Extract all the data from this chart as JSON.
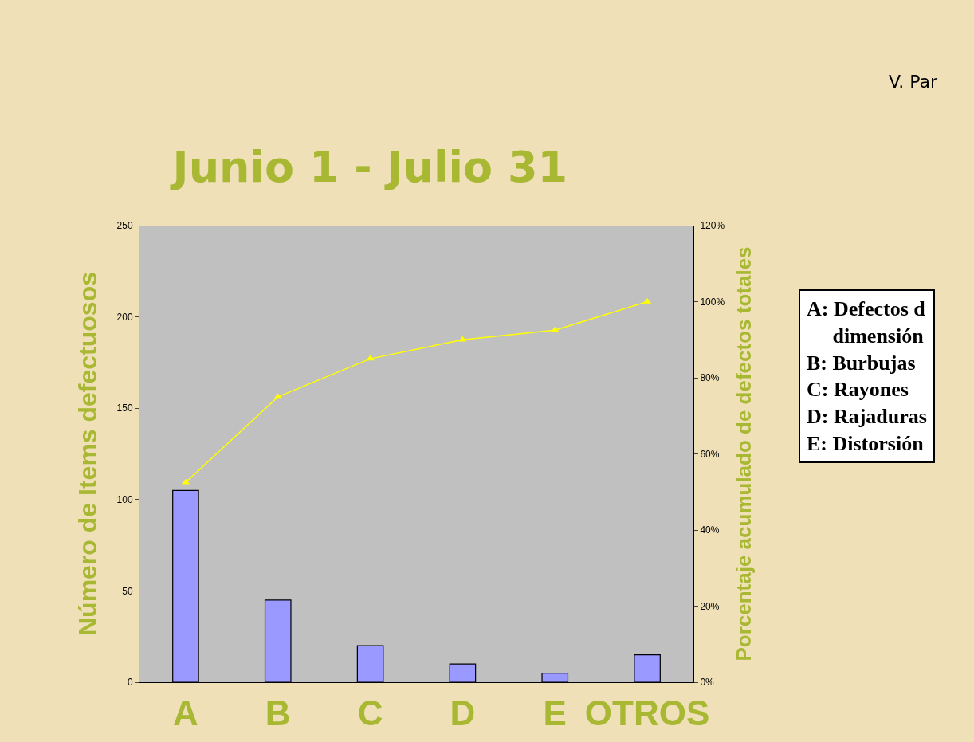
{
  "chart_data": {
    "type": "bar",
    "title": "Junio 1 - Julio 31",
    "ylabel": "Número de Items defectuosos",
    "y2label": "Porcentaje acumulado de defectos totales",
    "categories": [
      "A",
      "B",
      "C",
      "D",
      "E",
      "OTROS"
    ],
    "series": [
      {
        "color": "#9999ff",
        "values": [
          105,
          45,
          20,
          10,
          5,
          15
        ]
      },
      {
        "type": "line",
        "axis": "y2",
        "color": "#ffff00",
        "marker": "triangle",
        "values": [
          52.5,
          75,
          85,
          90,
          92.5,
          100
        ]
      }
    ],
    "ylim": [
      0,
      250
    ],
    "yticks": [
      0,
      50,
      100,
      150,
      200,
      250
    ],
    "y2lim": [
      0,
      120
    ],
    "y2ticks": [
      {
        "value": 0,
        "label": "0%"
      },
      {
        "value": 20,
        "label": "20%"
      },
      {
        "value": 40,
        "label": "40%"
      },
      {
        "value": 60,
        "label": "60%"
      },
      {
        "value": 80,
        "label": "80%"
      },
      {
        "value": 100,
        "label": "100%"
      },
      {
        "value": 120,
        "label": "120%"
      }
    ],
    "grid": false,
    "legend": false,
    "annotations": [
      "V. Par",
      "A: Defectos d",
      "dimensión",
      "B: Burbujas",
      "C: Rayones",
      "D: Rajaduras",
      "E: Distorsión"
    ]
  }
}
